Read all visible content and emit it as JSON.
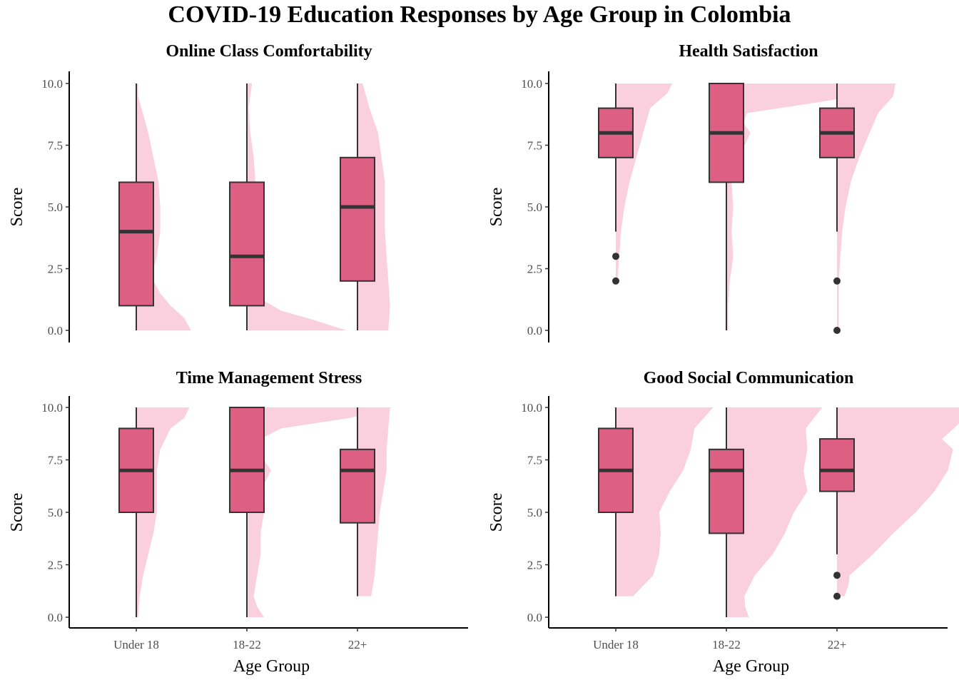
{
  "title": "COVID-19 Education Responses by Age Group in Colombia",
  "colors": {
    "box_fill": "#DE5F84",
    "density_fill": "#FACFDE",
    "line": "#333333",
    "axis": "#000000"
  },
  "chart_data": [
    {
      "type": "boxplot+density",
      "title": "Online Class Comfortability",
      "xlabel": "",
      "ylabel": "Score",
      "categories": [
        "Under 18",
        "18-22",
        "22+"
      ],
      "ylim": [
        0,
        10
      ],
      "yticks": [
        "0.0",
        "2.5",
        "5.0",
        "7.5",
        "10.0"
      ],
      "boxes": [
        {
          "min": 0,
          "q1": 1,
          "median": 4,
          "q3": 6,
          "max": 10,
          "outliers": []
        },
        {
          "min": 0,
          "q1": 1,
          "median": 3,
          "q3": 6,
          "max": 10,
          "outliers": []
        },
        {
          "min": 0,
          "q1": 2,
          "median": 5,
          "q3": 7,
          "max": 10,
          "outliers": []
        }
      ],
      "density": [
        {
          "y": [
            0,
            0.5,
            1,
            1.5,
            2,
            2.5,
            3,
            4,
            5,
            6,
            7,
            8,
            9,
            9.5,
            10
          ],
          "w": [
            0.32,
            0.28,
            0.2,
            0.14,
            0.1,
            0.1,
            0.12,
            0.14,
            0.14,
            0.13,
            0.1,
            0.07,
            0.03,
            0.01,
            0.01
          ]
        },
        {
          "y": [
            0,
            0.4,
            0.8,
            1.2,
            1.5,
            2,
            3,
            4,
            5,
            6,
            7,
            8,
            9,
            10
          ],
          "w": [
            0.58,
            0.4,
            0.2,
            0.1,
            0.05,
            0.04,
            0.06,
            0.05,
            0.04,
            0.05,
            0.04,
            0.02,
            0.01,
            0.03
          ]
        },
        {
          "y": [
            0,
            1,
            2,
            3,
            4,
            5,
            6,
            7,
            8,
            9,
            10
          ],
          "w": [
            0.18,
            0.19,
            0.18,
            0.17,
            0.16,
            0.16,
            0.16,
            0.14,
            0.12,
            0.07,
            0.03
          ]
        }
      ]
    },
    {
      "type": "boxplot+density",
      "title": "Health Satisfaction",
      "xlabel": "",
      "ylabel": "Score",
      "categories": [
        "Under 18",
        "18-22",
        "22+"
      ],
      "ylim": [
        0,
        10
      ],
      "yticks": [
        "0.0",
        "2.5",
        "5.0",
        "7.5",
        "10.0"
      ],
      "boxes": [
        {
          "min": 4,
          "q1": 7,
          "median": 8,
          "q3": 9,
          "max": 10,
          "outliers": [
            3,
            2
          ]
        },
        {
          "min": 0,
          "q1": 6,
          "median": 8,
          "q3": 10,
          "max": 10,
          "outliers": []
        },
        {
          "min": 4,
          "q1": 7,
          "median": 8,
          "q3": 9,
          "max": 10,
          "outliers": [
            2,
            0
          ]
        }
      ],
      "density": [
        {
          "y": [
            2,
            3,
            4,
            5,
            6,
            7,
            8,
            9,
            9.6,
            10
          ],
          "w": [
            0.01,
            0.02,
            0.03,
            0.05,
            0.08,
            0.12,
            0.16,
            0.2,
            0.3,
            0.33
          ]
        },
        {
          "y": [
            0,
            1,
            2,
            3,
            4,
            5,
            6,
            6.6,
            7,
            7.4,
            8,
            8.4,
            8.8,
            9.2,
            9.6,
            10
          ],
          "w": [
            0.01,
            0.01,
            0.02,
            0.04,
            0.03,
            0.04,
            0.03,
            0.08,
            0.06,
            0.1,
            0.14,
            0.1,
            0.12,
            0.5,
            0.85,
            1.0
          ]
        },
        {
          "y": [
            0,
            1,
            2,
            3,
            4,
            5,
            6,
            7,
            8,
            8.8,
            9.5,
            10
          ],
          "w": [
            0.01,
            0.01,
            0.01,
            0.02,
            0.03,
            0.05,
            0.08,
            0.13,
            0.19,
            0.24,
            0.33,
            0.34
          ]
        }
      ]
    },
    {
      "type": "boxplot+density",
      "title": "Time Management Stress",
      "xlabel": "Age Group",
      "ylabel": "Score",
      "categories": [
        "Under 18",
        "18-22",
        "22+"
      ],
      "ylim": [
        0,
        10
      ],
      "yticks": [
        "0.0",
        "2.5",
        "5.0",
        "7.5",
        "10.0"
      ],
      "boxes": [
        {
          "min": 0,
          "q1": 5,
          "median": 7,
          "q3": 9,
          "max": 10,
          "outliers": []
        },
        {
          "min": 0,
          "q1": 5,
          "median": 7,
          "q3": 10,
          "max": 10,
          "outliers": []
        },
        {
          "min": 1,
          "q1": 4.5,
          "median": 7,
          "q3": 8,
          "max": 10,
          "outliers": []
        }
      ],
      "density": [
        {
          "y": [
            0,
            1,
            2,
            3,
            4,
            5,
            6,
            7,
            8,
            9,
            9.5,
            10
          ],
          "w": [
            0.01,
            0.02,
            0.04,
            0.07,
            0.1,
            0.12,
            0.12,
            0.12,
            0.14,
            0.2,
            0.28,
            0.31
          ]
        },
        {
          "y": [
            0,
            0.5,
            1,
            2,
            3,
            4,
            5,
            6,
            7,
            7.5,
            8,
            8.5,
            9,
            9.5,
            10
          ],
          "w": [
            0.1,
            0.06,
            0.04,
            0.06,
            0.08,
            0.08,
            0.1,
            0.08,
            0.14,
            0.1,
            0.08,
            0.08,
            0.2,
            0.6,
            0.85
          ]
        },
        {
          "y": [
            1,
            2,
            3,
            4,
            5,
            6,
            7,
            8,
            9,
            10
          ],
          "w": [
            0.08,
            0.1,
            0.11,
            0.12,
            0.13,
            0.15,
            0.17,
            0.17,
            0.18,
            0.19
          ]
        }
      ]
    },
    {
      "type": "boxplot+density",
      "title": "Good Social Communication",
      "xlabel": "Age Group",
      "ylabel": "Score",
      "categories": [
        "Under 18",
        "18-22",
        "22+"
      ],
      "ylim": [
        0,
        10
      ],
      "yticks": [
        "0.0",
        "2.5",
        "5.0",
        "7.5",
        "10.0"
      ],
      "boxes": [
        {
          "min": 1,
          "q1": 5,
          "median": 7,
          "q3": 9,
          "max": 10,
          "outliers": []
        },
        {
          "min": 0,
          "q1": 4,
          "median": 7,
          "q3": 8,
          "max": 10,
          "outliers": []
        },
        {
          "min": 3,
          "q1": 6,
          "median": 7,
          "q3": 8.5,
          "max": 10,
          "outliers": [
            2,
            1
          ]
        }
      ],
      "density": [
        {
          "y": [
            1,
            2,
            3,
            4,
            5,
            6,
            7,
            8,
            9,
            10
          ],
          "w": [
            0.23,
            0.5,
            0.58,
            0.6,
            0.58,
            0.72,
            0.9,
            1.0,
            1.05,
            1.3
          ]
        },
        {
          "y": [
            0,
            0.5,
            1,
            2,
            3,
            4,
            5,
            6,
            7,
            8,
            9,
            10
          ],
          "w": [
            0.3,
            0.25,
            0.24,
            0.38,
            0.62,
            0.78,
            0.9,
            1.08,
            1.03,
            1.08,
            1.06,
            1.28
          ]
        },
        {
          "y": [
            1,
            1.5,
            2,
            3,
            4,
            5,
            6,
            7,
            8,
            8.5,
            9,
            10
          ],
          "w": [
            0.1,
            0.15,
            0.17,
            0.48,
            0.75,
            1.05,
            1.3,
            1.48,
            1.55,
            1.4,
            1.56,
            1.84
          ]
        }
      ]
    }
  ]
}
